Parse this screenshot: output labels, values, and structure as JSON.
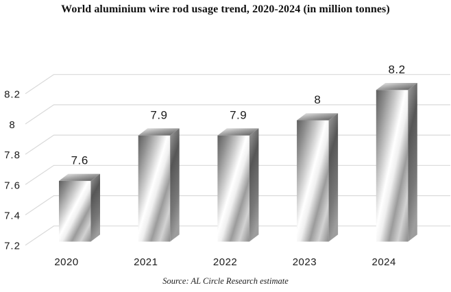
{
  "chart_data": {
    "type": "bar",
    "style": "3d-column-metallic",
    "title": "World aluminium wire rod usage trend, 2020-2024 (in million tonnes)",
    "source": "Source: AL Circle Research estimate",
    "categories": [
      "2020",
      "2021",
      "2022",
      "2023",
      "2024"
    ],
    "values": [
      7.6,
      7.9,
      7.9,
      8,
      8.2
    ],
    "data_labels": [
      "7.6",
      "7.9",
      "7.9",
      "8",
      "8.2"
    ],
    "xlabel": "",
    "ylabel": "",
    "ylim": [
      7.2,
      8.35
    ],
    "y_ticks": [
      {
        "value": 8.2,
        "label": "8.2"
      },
      {
        "value": 8.0,
        "label": "8"
      },
      {
        "value": 7.8,
        "label": "7.8"
      },
      {
        "value": 7.6,
        "label": "7.6"
      },
      {
        "value": 7.4,
        "label": "7.4"
      },
      {
        "value": 7.2,
        "label": "7.2"
      }
    ],
    "grid": true,
    "legend": false,
    "colors": {
      "background": "#ffffff",
      "gridline": "#d9d9d9",
      "text": "#1a1a1a",
      "metal_dark": "#5e5e5e",
      "metal_mid": "#8a8a8a",
      "metal_light": "#ffffff"
    }
  }
}
